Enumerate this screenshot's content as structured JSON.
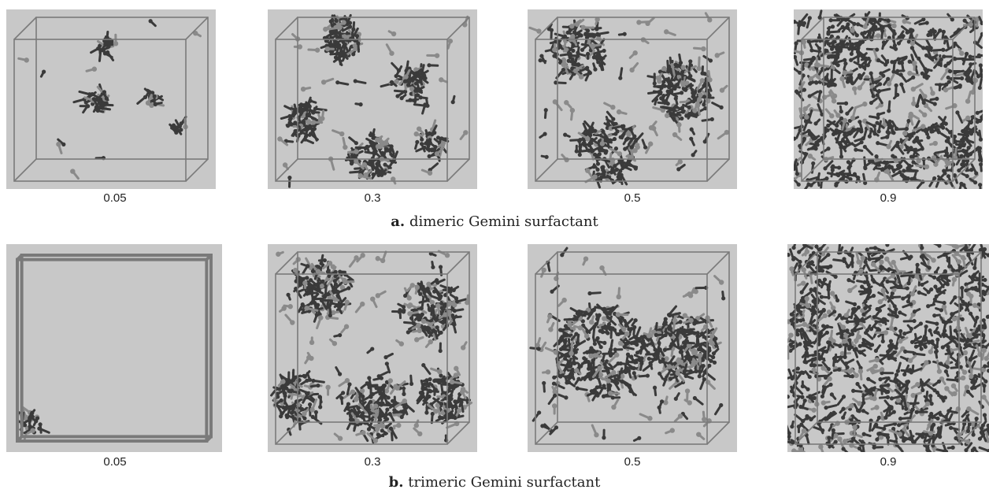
{
  "rows": [
    {
      "id": "a",
      "caption_letter": "a.",
      "caption_text": "dimeric Gemini surfactant",
      "panels": [
        {
          "concentration": "0.05"
        },
        {
          "concentration": "0.3"
        },
        {
          "concentration": "0.5"
        },
        {
          "concentration": "0.9"
        }
      ]
    },
    {
      "id": "b",
      "caption_letter": "b.",
      "caption_text": "trimeric Gemini surfactant",
      "panels": [
        {
          "concentration": "0.05"
        },
        {
          "concentration": "0.3"
        },
        {
          "concentration": "0.5"
        },
        {
          "concentration": "0.9"
        }
      ]
    }
  ],
  "colors": {
    "panel_background": "#c8c8c8",
    "box_edge": "#7a7a7a",
    "tail_dark": "#3a3a3a",
    "head_light": "#8a8a8a"
  }
}
